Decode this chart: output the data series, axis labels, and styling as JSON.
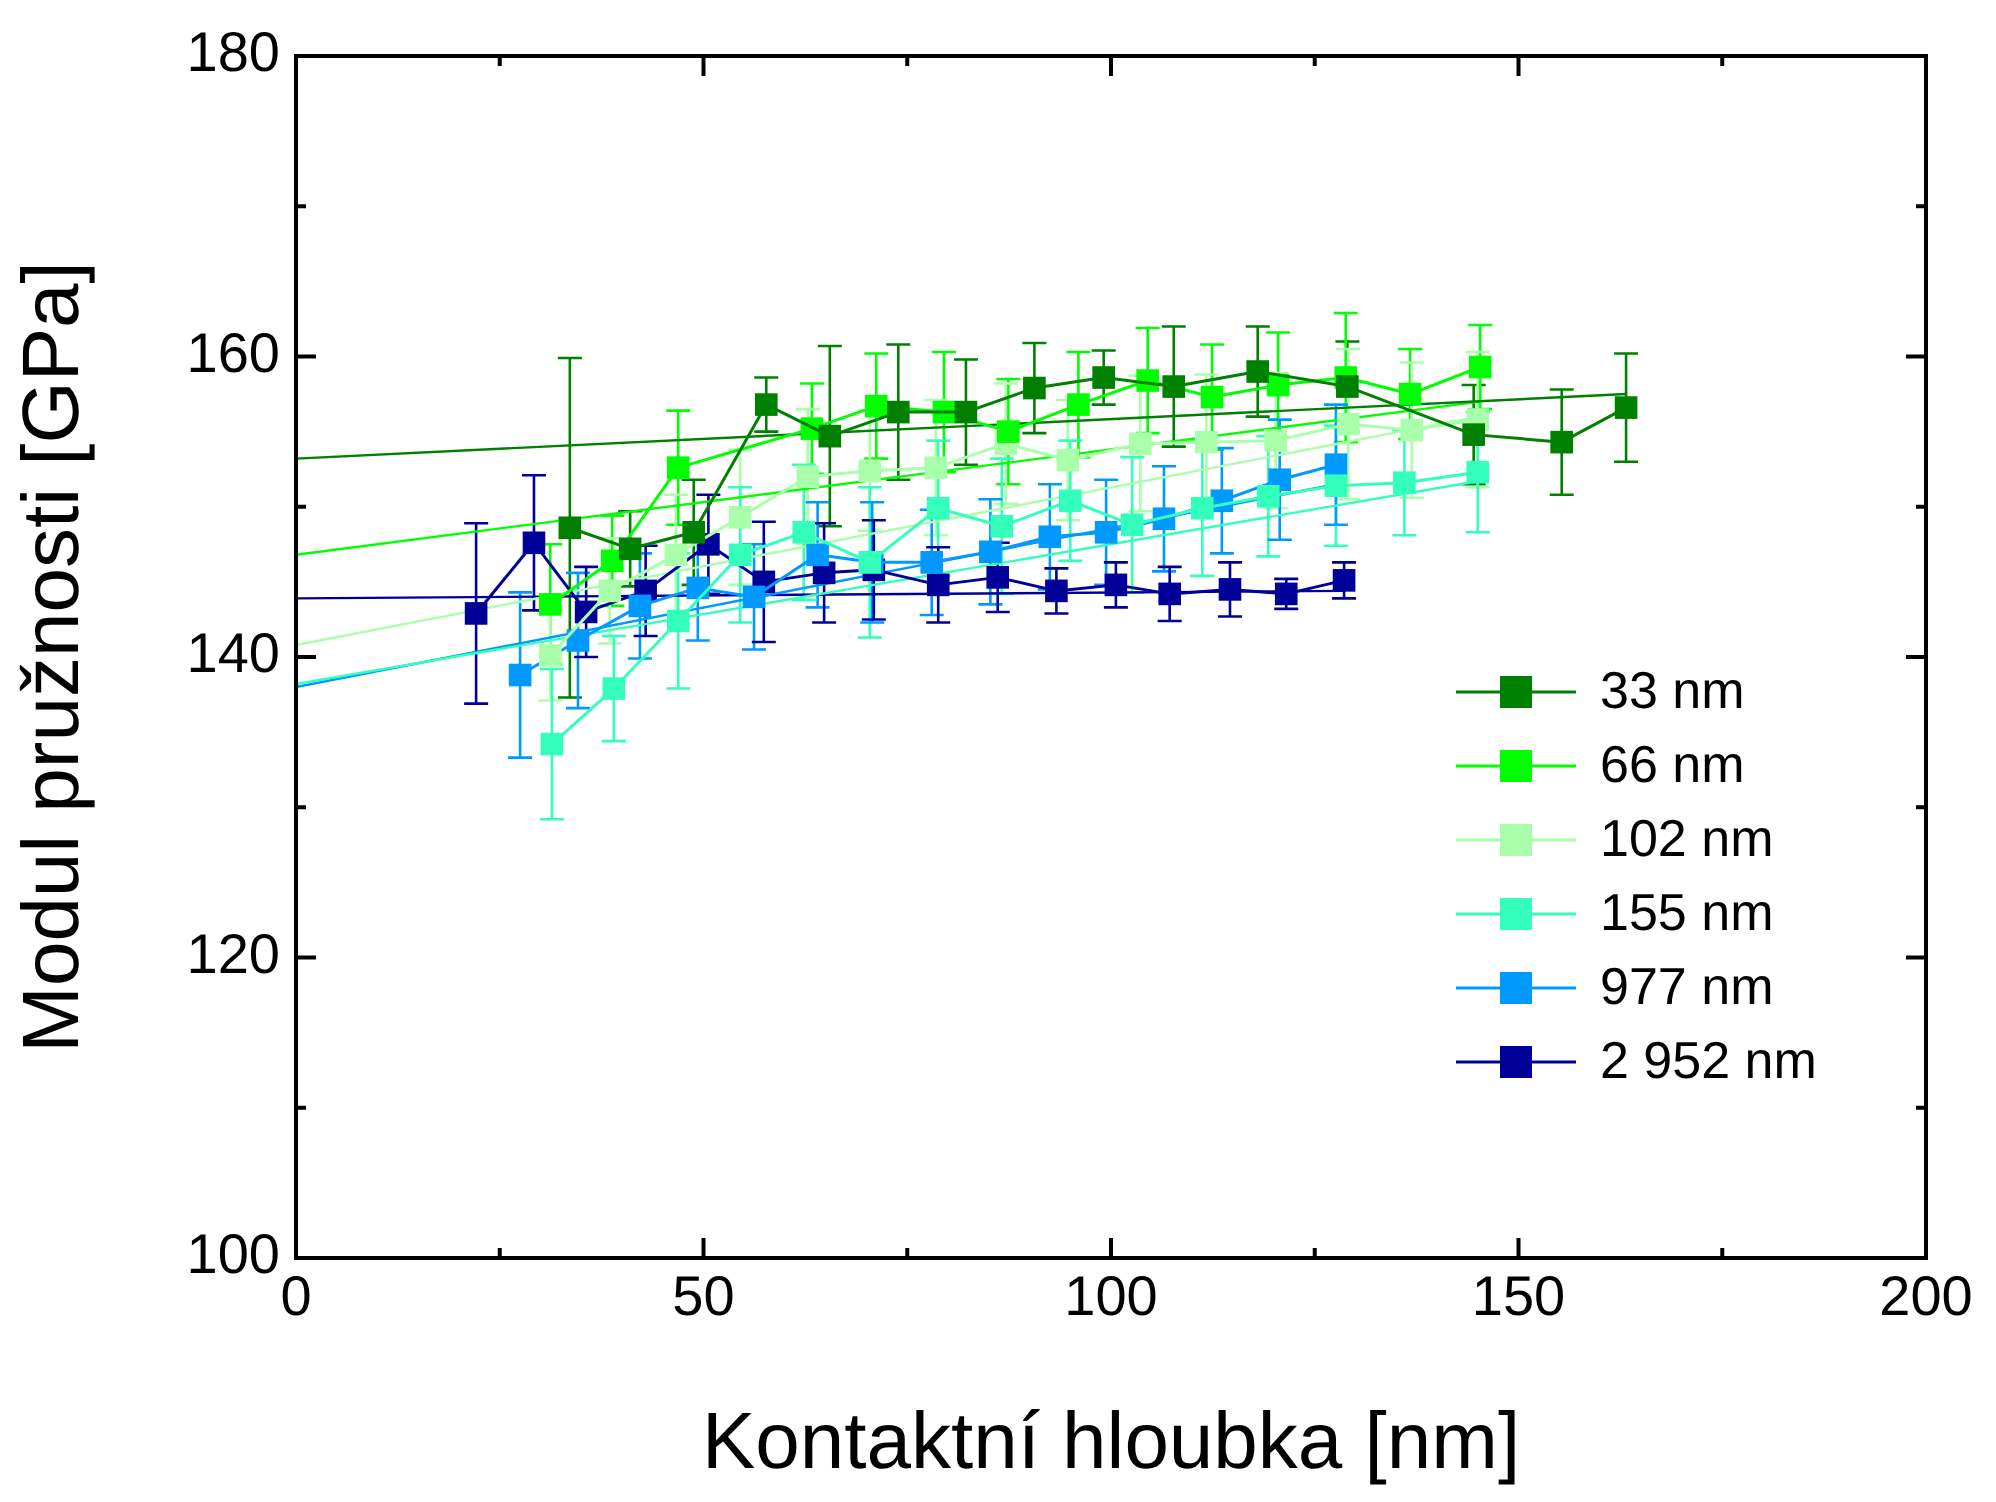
{
  "chart_data": {
    "type": "line",
    "xlabel": "Kontaktní hloubka [nm]",
    "ylabel": "Modul pružnosti [GPa]",
    "xlim": [
      0,
      200
    ],
    "xticks": [
      0,
      50,
      100,
      150,
      200
    ],
    "ylim": [
      100,
      180
    ],
    "yticks": [
      100,
      120,
      140,
      160,
      180
    ],
    "grid": false,
    "legend": "right",
    "marker": "square",
    "line_style": "solid",
    "series": [
      {
        "name": "33 nm",
        "color": "#008000",
        "x": [
          33.6,
          41,
          48.8,
          57.7,
          65.5,
          73.9,
          82.2,
          90.6,
          99.1,
          107.7,
          118,
          129,
          144.5,
          155.3,
          163.2
        ],
        "values": [
          148.6,
          147.2,
          148.3,
          156.8,
          154.7,
          156.3,
          156.3,
          157.9,
          158.6,
          158,
          159,
          158,
          154.8,
          154.3,
          156.6
        ],
        "errors": [
          11.3,
          2.5,
          3.5,
          1.8,
          6,
          4.5,
          3.5,
          3,
          1.8,
          4,
          3,
          3,
          3.3,
          3.5,
          3.6
        ]
      },
      {
        "name": "66 nm",
        "color": "#00ff00",
        "x": [
          31.2,
          38.8,
          46.9,
          63.3,
          71.2,
          79.5,
          87.4,
          96,
          104.5,
          112.4,
          120.5,
          128.8,
          136.7,
          145.3
        ],
        "values": [
          143.5,
          146.4,
          152.6,
          155.2,
          156.7,
          156.3,
          155,
          156.8,
          158.4,
          157.3,
          158.1,
          158.6,
          157.5,
          159.3
        ],
        "errors": [
          4,
          3,
          3.8,
          3,
          3.5,
          4,
          3.5,
          3.5,
          3.5,
          3.5,
          3.5,
          4.3,
          3,
          2.8
        ]
      },
      {
        "name": "102 nm",
        "color": "#aaffaa",
        "x": [
          31.2,
          38.5,
          46.6,
          54.5,
          62.8,
          70.4,
          78.5,
          87.1,
          94.7,
          103.6,
          111.7,
          120.2,
          129.1,
          136.9,
          145
        ],
        "values": [
          140.1,
          144.4,
          146.8,
          149.3,
          152,
          152.4,
          152.6,
          154.2,
          153.1,
          154.2,
          154.3,
          154.4,
          155.5,
          155.1,
          155.8
        ],
        "errors": [
          3,
          3.5,
          4,
          4.5,
          4.5,
          4,
          4.5,
          4,
          4,
          4.5,
          4.5,
          4.5,
          5,
          4.5,
          4.5
        ]
      },
      {
        "name": "155 nm",
        "color": "#33ffbb",
        "x": [
          31.4,
          39,
          46.9,
          54.5,
          62.3,
          70.4,
          78.8,
          86.6,
          95,
          102.6,
          111.2,
          119.3,
          127.6,
          136,
          145
        ],
        "values": [
          134.2,
          137.9,
          142.4,
          146.8,
          148.3,
          146.3,
          149.9,
          148.7,
          150.4,
          148.8,
          149.9,
          150.7,
          151.4,
          151.6,
          152.3
        ],
        "errors": [
          5,
          3.5,
          4.5,
          4.5,
          4.5,
          5,
          4.5,
          4.5,
          4,
          4.5,
          4.5,
          4,
          4,
          3.5,
          4
        ]
      },
      {
        "name": "977 nm",
        "color": "#0099ff",
        "x": [
          27.5,
          34.6,
          42.2,
          49.3,
          56.2,
          64,
          70.7,
          78,
          85.2,
          92.5,
          99.4,
          106.5,
          113.6,
          120.7,
          127.6
        ],
        "values": [
          138.8,
          141.1,
          143.4,
          144.6,
          144,
          146.8,
          146.3,
          146.3,
          147,
          148,
          148.3,
          149.2,
          150.4,
          151.8,
          152.8
        ],
        "errors": [
          5.5,
          4.5,
          3.5,
          3.5,
          3.5,
          3.5,
          4,
          3.5,
          3.5,
          3.5,
          3.5,
          3.5,
          3.5,
          4,
          4
        ]
      },
      {
        "name": "2 952 nm",
        "color": "#000099",
        "x": [
          22.1,
          29.2,
          35.6,
          42.9,
          50.6,
          57.4,
          64.8,
          70.9,
          78.8,
          86.1,
          93.3,
          100.6,
          107.2,
          114.6,
          121.5,
          128.6
        ],
        "values": [
          142.9,
          147.6,
          143,
          144.4,
          147.5,
          145,
          145.6,
          145.8,
          144.8,
          145.3,
          144.4,
          144.8,
          144.2,
          144.5,
          144.2,
          145.1
        ],
        "errors": [
          6,
          4.5,
          3,
          3,
          3.3,
          4,
          3.3,
          3.3,
          2.5,
          2.3,
          1.5,
          1.5,
          1.8,
          1.8,
          1,
          1.2
        ]
      },
      {
        "type": "line",
        "marker": "none",
        "color": "#008000",
        "x": [
          0,
          163.2
        ],
        "values": [
          153.2,
          157.5
        ]
      },
      {
        "type": "line",
        "marker": "none",
        "color": "#00ff00",
        "x": [
          0,
          145.3
        ],
        "values": [
          146.8,
          157
        ]
      },
      {
        "type": "line",
        "marker": "none",
        "color": "#aaffaa",
        "x": [
          0,
          145
        ],
        "values": [
          140.8,
          156
        ]
      },
      {
        "type": "line",
        "marker": "none",
        "color": "#33ffbb",
        "x": [
          0,
          145
        ],
        "values": [
          138.2,
          151.7
        ]
      },
      {
        "type": "line",
        "marker": "none",
        "color": "#0099ff",
        "x": [
          0,
          127.6
        ],
        "values": [
          138,
          151.5
        ]
      },
      {
        "type": "line",
        "marker": "none",
        "color": "#000099",
        "x": [
          0,
          128.6
        ],
        "values": [
          143.9,
          144.4
        ]
      }
    ]
  }
}
